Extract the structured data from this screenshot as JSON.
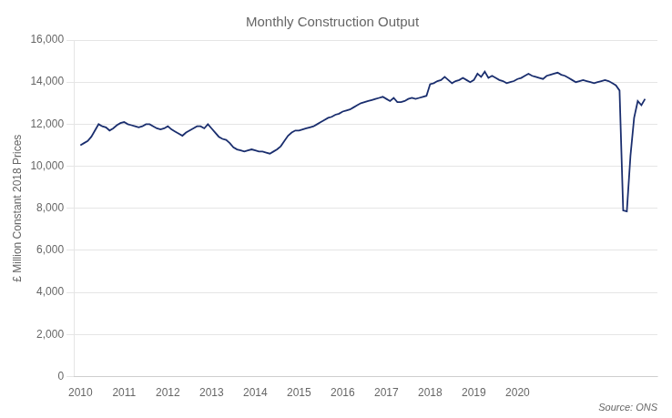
{
  "chart_data": {
    "type": "line",
    "title": "Monthly Construction Output",
    "y_label": "£ Million Constant 2018 Prices",
    "annotations": [
      "Source: ONS"
    ],
    "color": "#1a2e6e",
    "grid": "y",
    "xlim": [
      2009.85,
      2023.2
    ],
    "xticks": [
      2010,
      2011,
      2012,
      2013,
      2014,
      2015,
      2016,
      2017,
      2018,
      2019,
      2020
    ],
    "ylim": [
      0,
      16000
    ],
    "yticks": [
      0,
      {
        "value": 2000,
        "label": "2,000"
      },
      {
        "value": 4000,
        "label": "4,000"
      },
      {
        "value": 6000,
        "label": "6,000"
      },
      {
        "value": 8000,
        "label": "8,000"
      },
      {
        "value": 10000,
        "label": "10,000"
      },
      {
        "value": 12000,
        "label": "12,000"
      },
      {
        "value": 14000,
        "label": "14,000"
      },
      {
        "value": 16000,
        "label": "16,000"
      }
    ],
    "x": [
      2010,
      2010.0833333333333,
      2010.1666666666667,
      2010.25,
      2010.3333333333333,
      2010.4166666666667,
      2010.5,
      2010.5833333333333,
      2010.6666666666667,
      2010.75,
      2010.8333333333333,
      2010.9166666666667,
      2011,
      2011.0833333333333,
      2011.1666666666667,
      2011.25,
      2011.3333333333333,
      2011.4166666666667,
      2011.5,
      2011.5833333333333,
      2011.6666666666667,
      2011.75,
      2011.8333333333333,
      2011.9166666666667,
      2012,
      2012.0833333333333,
      2012.1666666666667,
      2012.25,
      2012.3333333333333,
      2012.4166666666667,
      2012.5,
      2012.5833333333333,
      2012.6666666666667,
      2012.75,
      2012.8333333333333,
      2012.9166666666667,
      2013,
      2013.0833333333333,
      2013.1666666666667,
      2013.25,
      2013.3333333333333,
      2013.4166666666667,
      2013.5,
      2013.5833333333333,
      2013.6666666666667,
      2013.75,
      2013.8333333333333,
      2013.9166666666667,
      2014,
      2014.0833333333333,
      2014.1666666666667,
      2014.25,
      2014.3333333333333,
      2014.4166666666667,
      2014.5,
      2014.5833333333333,
      2014.6666666666667,
      2014.75,
      2014.8333333333333,
      2014.9166666666667,
      2015,
      2015.0833333333333,
      2015.1666666666667,
      2015.25,
      2015.3333333333333,
      2015.4166666666667,
      2015.5,
      2015.5833333333333,
      2015.6666666666667,
      2015.75,
      2015.8333333333333,
      2015.9166666666667,
      2016,
      2016.0833333333333,
      2016.1666666666667,
      2016.25,
      2016.3333333333333,
      2016.4166666666667,
      2016.5,
      2016.5833333333333,
      2016.6666666666667,
      2016.75,
      2016.8333333333333,
      2016.9166666666667,
      2017,
      2017.0833333333333,
      2017.1666666666667,
      2017.25,
      2017.3333333333333,
      2017.4166666666667,
      2017.5,
      2017.5833333333333,
      2017.6666666666667,
      2017.75,
      2017.8333333333333,
      2017.9166666666667,
      2018,
      2018.0833333333333,
      2018.1666666666667,
      2018.25,
      2018.3333333333333,
      2018.4166666666667,
      2018.5,
      2018.5833333333333,
      2018.6666666666667,
      2018.75,
      2018.8333333333333,
      2018.9166666666667,
      2019,
      2019.0833333333333,
      2019.1666666666667,
      2019.25,
      2019.3333333333333,
      2019.4166666666667,
      2019.5,
      2019.5833333333333,
      2019.6666666666667,
      2019.75,
      2019.8333333333333,
      2019.9166666666667,
      2020,
      2020.0833333333333,
      2020.1666666666667,
      2020.25,
      2020.3333333333333,
      2020.4166666666667,
      2020.5,
      2020.5833333333333,
      2020.6666666666667,
      2020.75,
      2020.8333333333333,
      2020.9166666666667,
      2021,
      2021.0833333333333,
      2021.1666666666667,
      2021.25,
      2021.3333333333333,
      2021.4166666666667,
      2021.5,
      2021.5833333333333,
      2021.6666666666667,
      2021.75,
      2021.8333333333333,
      2021.9166666666667,
      2022,
      2022.0833333333333,
      2022.1666666666667,
      2022.25,
      2022.3333333333333,
      2022.4166666666667,
      2022.5,
      2022.5833333333333,
      2022.6666666666667,
      2022.75,
      2022.8333333333333,
      2022.9166666666667
    ],
    "values": [
      11000,
      11100,
      11200,
      11400,
      11700,
      12000,
      11900,
      11850,
      11700,
      11800,
      11950,
      12050,
      12100,
      12000,
      11950,
      11900,
      11850,
      11900,
      12000,
      12000,
      11900,
      11800,
      11750,
      11800,
      11900,
      11750,
      11650,
      11550,
      11450,
      11600,
      11700,
      11800,
      11900,
      11900,
      11800,
      12000,
      11800,
      11600,
      11400,
      11300,
      11250,
      11100,
      10900,
      10800,
      10750,
      10700,
      10750,
      10800,
      10750,
      10700,
      10700,
      10650,
      10600,
      10700,
      10800,
      10950,
      11200,
      11450,
      11600,
      11700,
      11700,
      11750,
      11800,
      11850,
      11900,
      12000,
      12100,
      12200,
      12300,
      12350,
      12450,
      12500,
      12600,
      12650,
      12700,
      12800,
      12900,
      13000,
      13050,
      13100,
      13150,
      13200,
      13250,
      13300,
      13200,
      13100,
      13250,
      13050,
      13050,
      13100,
      13200,
      13250,
      13200,
      13250,
      13300,
      13350,
      13900,
      13950,
      14050,
      14100,
      14250,
      14100,
      13950,
      14050,
      14100,
      14200,
      14100,
      14000,
      14100,
      14400,
      14250,
      14500,
      14200,
      14300,
      14200,
      14100,
      14050,
      13950,
      14000,
      14050,
      14150,
      14200,
      14300,
      14400,
      14300,
      14250,
      14200,
      14150,
      14300,
      14350,
      14400,
      14450,
      14350,
      14300,
      14200,
      14100,
      14000,
      14050,
      14100,
      14050,
      14000,
      13950,
      14000,
      14050,
      14100,
      14050,
      13950,
      13850,
      13600,
      7900,
      7850,
      10500,
      12300,
      13100,
      12900,
      13200
    ]
  }
}
